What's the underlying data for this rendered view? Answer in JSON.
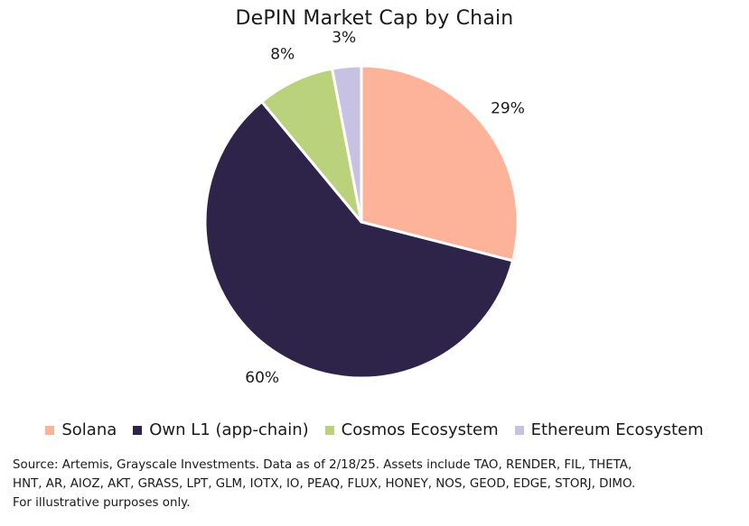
{
  "chart_data": {
    "type": "pie",
    "title": "DePIN Market Cap by Chain",
    "slices": [
      {
        "name": "Solana",
        "value": 29,
        "label": "29%",
        "color": "#FDB39A"
      },
      {
        "name": "Own L1 (app-chain)",
        "value": 60,
        "label": "60%",
        "color": "#2E2449"
      },
      {
        "name": "Cosmos Ecosystem",
        "value": 8,
        "label": "8%",
        "color": "#BBD27D"
      },
      {
        "name": "Ethereum Ecosystem",
        "value": 3,
        "label": "3%",
        "color": "#C7C2E2"
      }
    ],
    "legend_position": "bottom"
  },
  "source": {
    "lines": [
      "Source: Artemis, Grayscale Investments. Data as of 2/18/25. Assets include TAO, RENDER, FIL, THETA,",
      "HNT, AR, AIOZ, AKT, GRASS, LPT, GLM, IOTX, IO, PEAQ, FLUX, HONEY, NOS, GEOD, EDGE, STORJ, DIMO.",
      "For illustrative purposes only."
    ]
  }
}
